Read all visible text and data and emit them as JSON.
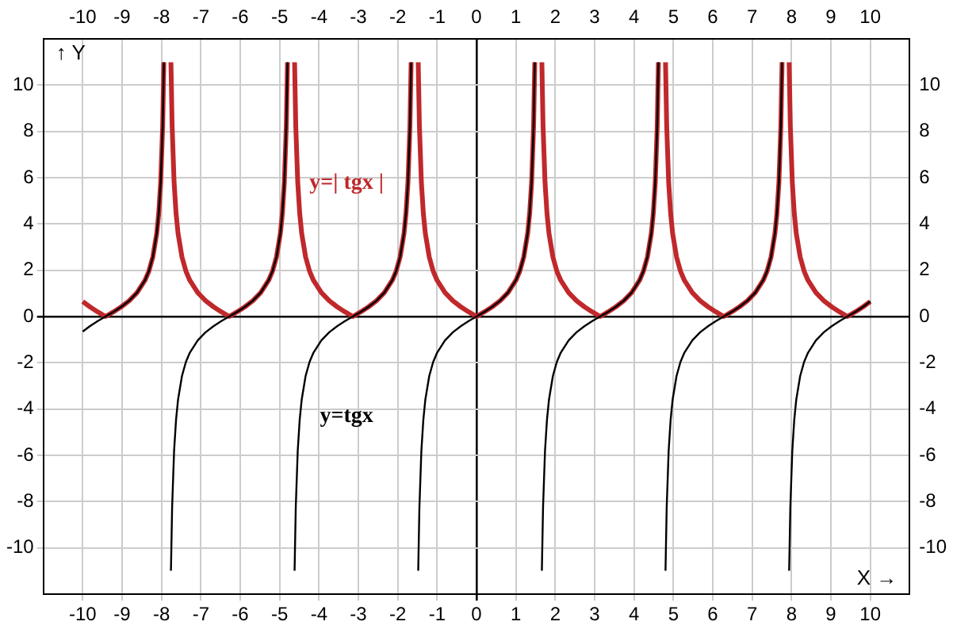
{
  "chart_data": {
    "type": "line",
    "xlabel": "X →",
    "ylabel": "↑ Y",
    "grid": true,
    "marker": "none",
    "xlim": [
      -11,
      11
    ],
    "ylim": [
      -12,
      12
    ],
    "x2lim": [
      -11,
      11
    ],
    "y2lim": [
      -12,
      12
    ],
    "xticks": [
      -10,
      -9,
      -8,
      -7,
      -6,
      -5,
      -4,
      -3,
      -2,
      -1,
      0,
      1,
      2,
      3,
      4,
      5,
      6,
      7,
      8,
      9,
      10
    ],
    "x2ticks": [
      -10,
      -9,
      -8,
      -7,
      -6,
      -5,
      -4,
      -3,
      -2,
      -1,
      0,
      1,
      2,
      3,
      4,
      5,
      6,
      7,
      8,
      9,
      10
    ],
    "yticks": [
      -10,
      -8,
      -6,
      -4,
      -2,
      0,
      2,
      4,
      6,
      8,
      10
    ],
    "y2ticks": [
      -10,
      -8,
      -6,
      -4,
      -2,
      0,
      2,
      4,
      6,
      8,
      10
    ],
    "x": [
      -10,
      -9.82,
      -9.62,
      -9.42,
      -9.22,
      -9.02,
      -8.82,
      -8.62,
      -8.42,
      -8.32,
      -8.22,
      -8.12,
      -8.07,
      -8.02,
      -7.97,
      -7.94,
      -7.85,
      -7.76,
      -7.73,
      -7.68,
      -7.63,
      -7.58,
      -7.48,
      -7.38,
      -7.28,
      -7.08,
      -6.88,
      -6.68,
      -6.48,
      -6.28,
      -6.08,
      -5.88,
      -5.68,
      -5.48,
      -5.28,
      -5.18,
      -5.08,
      -4.98,
      -4.93,
      -4.88,
      -4.83,
      -4.8,
      -4.71,
      -4.62,
      -4.59,
      -4.54,
      -4.49,
      -4.44,
      -4.34,
      -4.24,
      -4.14,
      -3.94,
      -3.74,
      -3.54,
      -3.34,
      -3.14,
      -2.94,
      -2.74,
      -2.54,
      -2.34,
      -2.14,
      -2.04,
      -1.94,
      -1.84,
      -1.79,
      -1.74,
      -1.69,
      -1.66,
      -1.57,
      -1.48,
      -1.45,
      -1.4,
      -1.35,
      -1.3,
      -1.2,
      -1.1,
      -1,
      -0.8,
      -0.6,
      -0.4,
      -0.2,
      0,
      0.2,
      0.4,
      0.6,
      0.8,
      1,
      1.1,
      1.2,
      1.3,
      1.35,
      1.4,
      1.45,
      1.48,
      1.57,
      1.66,
      1.69,
      1.74,
      1.79,
      1.84,
      1.94,
      2.04,
      2.14,
      2.34,
      2.54,
      2.74,
      2.94,
      3.14,
      3.34,
      3.54,
      3.74,
      3.94,
      4.14,
      4.24,
      4.34,
      4.44,
      4.49,
      4.54,
      4.59,
      4.62,
      4.71,
      4.8,
      4.83,
      4.88,
      4.93,
      4.98,
      5.08,
      5.18,
      5.28,
      5.48,
      5.68,
      5.88,
      6.08,
      6.28,
      6.48,
      6.68,
      6.88,
      7.08,
      7.28,
      7.38,
      7.48,
      7.58,
      7.63,
      7.68,
      7.73,
      7.76,
      7.85,
      7.94,
      7.97,
      8.02,
      8.07,
      8.12,
      8.22,
      8.32,
      8.42,
      8.62,
      8.82,
      9.02,
      9.22,
      9.42,
      9.62,
      9.82,
      10
    ],
    "series": [
      {
        "name": "y=| tgx |",
        "color": "#c0282b",
        "values": [
          0.65,
          0.42,
          0.2,
          0,
          0.2,
          0.42,
          0.68,
          1.03,
          1.56,
          1.96,
          2.57,
          3.6,
          4.46,
          5.8,
          8.24,
          10.98,
          null,
          10.98,
          8.24,
          5.8,
          4.46,
          3.6,
          2.57,
          1.96,
          1.56,
          1.03,
          0.68,
          0.42,
          0.2,
          0,
          0.2,
          0.42,
          0.68,
          1.03,
          1.56,
          1.96,
          2.57,
          3.6,
          4.46,
          5.8,
          8.24,
          10.98,
          null,
          10.98,
          8.24,
          5.8,
          4.46,
          3.6,
          2.57,
          1.96,
          1.56,
          1.03,
          0.68,
          0.42,
          0.2,
          0,
          0.2,
          0.42,
          0.68,
          1.03,
          1.56,
          1.96,
          2.57,
          3.6,
          4.46,
          5.8,
          8.24,
          10.98,
          null,
          10.98,
          8.24,
          5.8,
          4.46,
          3.6,
          2.57,
          1.96,
          1.56,
          1.03,
          0.68,
          0.42,
          0.2,
          0,
          0.2,
          0.42,
          0.68,
          1.03,
          1.56,
          1.96,
          2.57,
          3.6,
          4.46,
          5.8,
          8.24,
          10.98,
          null,
          10.98,
          8.24,
          5.8,
          4.46,
          3.6,
          2.57,
          1.96,
          1.56,
          1.03,
          0.68,
          0.42,
          0.2,
          0,
          0.2,
          0.42,
          0.68,
          1.03,
          1.56,
          1.96,
          2.57,
          3.6,
          4.46,
          5.8,
          8.24,
          10.98,
          null,
          10.98,
          8.24,
          5.8,
          4.46,
          3.6,
          2.57,
          1.96,
          1.56,
          1.03,
          0.68,
          0.42,
          0.2,
          0,
          0.2,
          0.42,
          0.68,
          1.03,
          1.56,
          1.96,
          2.57,
          3.6,
          4.46,
          5.8,
          8.24,
          10.98,
          null,
          10.98,
          8.24,
          5.8,
          4.46,
          3.6,
          2.57,
          1.96,
          1.56,
          1.03,
          0.68,
          0.42,
          0.2,
          0,
          0.2,
          0.42,
          0.65
        ]
      },
      {
        "name": "y=tgx",
        "color": "#000000",
        "values": [
          -0.65,
          -0.42,
          -0.2,
          0,
          0.2,
          0.42,
          0.68,
          1.03,
          1.56,
          1.96,
          2.57,
          3.6,
          4.46,
          5.8,
          8.24,
          10.98,
          null,
          -10.98,
          -8.24,
          -5.8,
          -4.46,
          -3.6,
          -2.57,
          -1.96,
          -1.56,
          -1.03,
          -0.68,
          -0.42,
          -0.2,
          0,
          0.2,
          0.42,
          0.68,
          1.03,
          1.56,
          1.96,
          2.57,
          3.6,
          4.46,
          5.8,
          8.24,
          10.98,
          null,
          -10.98,
          -8.24,
          -5.8,
          -4.46,
          -3.6,
          -2.57,
          -1.96,
          -1.56,
          -1.03,
          -0.68,
          -0.42,
          -0.2,
          0,
          0.2,
          0.42,
          0.68,
          1.03,
          1.56,
          1.96,
          2.57,
          3.6,
          4.46,
          5.8,
          8.24,
          10.98,
          null,
          -10.98,
          -8.24,
          -5.8,
          -4.46,
          -3.6,
          -2.57,
          -1.96,
          -1.56,
          -1.03,
          -0.68,
          -0.42,
          -0.2,
          0,
          0.2,
          0.42,
          0.68,
          1.03,
          1.56,
          1.96,
          2.57,
          3.6,
          4.46,
          5.8,
          8.24,
          10.98,
          null,
          -10.98,
          -8.24,
          -5.8,
          -4.46,
          -3.6,
          -2.57,
          -1.96,
          -1.56,
          -1.03,
          -0.68,
          -0.42,
          -0.2,
          0,
          0.2,
          0.42,
          0.68,
          1.03,
          1.56,
          1.96,
          2.57,
          3.6,
          4.46,
          5.8,
          8.24,
          10.98,
          null,
          -10.98,
          -8.24,
          -5.8,
          -4.46,
          -3.6,
          -2.57,
          -1.96,
          -1.56,
          -1.03,
          -0.68,
          -0.42,
          -0.2,
          0,
          0.2,
          0.42,
          0.68,
          1.03,
          1.56,
          1.96,
          2.57,
          3.6,
          4.46,
          5.8,
          8.24,
          10.98,
          null,
          -10.98,
          -8.24,
          -5.8,
          -4.46,
          -3.6,
          -2.57,
          -1.96,
          -1.56,
          -1.03,
          -0.68,
          -0.42,
          -0.2,
          0,
          0.2,
          0.42,
          0.65
        ]
      }
    ]
  }
}
